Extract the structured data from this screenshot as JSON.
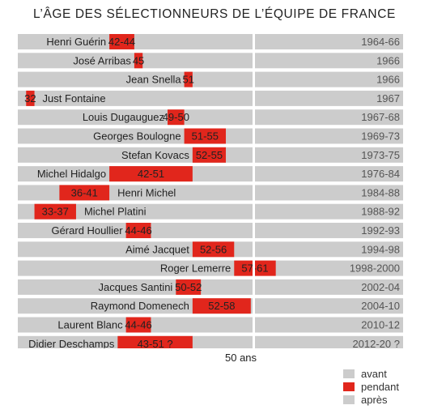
{
  "title": "L’ÂGE DES SÉLECTIONNEURS DE L’ÉQUIPE DE FRANCE",
  "axis_label": "50 ans",
  "legend": [
    {
      "label": "avant",
      "color": "#cccccc"
    },
    {
      "label": "pendant",
      "color": "#e1261c"
    },
    {
      "label": "après",
      "color": "#cccccc"
    }
  ],
  "colors": {
    "bar_background": "#cccccc",
    "tenure": "#e1261c"
  },
  "chart_data": {
    "type": "bar",
    "title": "L’ÂGE DES SÉLECTIONNEURS DE L’ÉQUIPE DE FRANCE",
    "xlabel": "50 ans",
    "x_reference": 50,
    "xlim": [
      31,
      69
    ],
    "series": [
      {
        "name": "Henri Guérin",
        "start": 42,
        "end": 44,
        "age_label": "42-44",
        "period": "1964-66"
      },
      {
        "name": "José Arribas",
        "start": 45,
        "end": 45,
        "age_label": "45",
        "period": "1966"
      },
      {
        "name": "Jean Snella",
        "start": 51,
        "end": 51,
        "age_label": "51",
        "period": "1966"
      },
      {
        "name": "Just Fontaine",
        "start": 32,
        "end": 32,
        "age_label": "32",
        "period": "1967"
      },
      {
        "name": "Louis Dugauguez",
        "start": 49,
        "end": 50,
        "age_label": "49-50",
        "period": "1967-68"
      },
      {
        "name": "Georges Boulogne",
        "start": 51,
        "end": 55,
        "age_label": "51-55",
        "period": "1969-73"
      },
      {
        "name": "Stefan Kovacs",
        "start": 52,
        "end": 55,
        "age_label": "52-55",
        "period": "1973-75"
      },
      {
        "name": "Michel Hidalgo",
        "start": 42,
        "end": 51,
        "age_label": "42-51",
        "period": "1976-84"
      },
      {
        "name": "Henri Michel",
        "start": 36,
        "end": 41,
        "age_label": "36-41",
        "period": "1984-88"
      },
      {
        "name": "Michel Platini",
        "start": 33,
        "end": 37,
        "age_label": "33-37",
        "period": "1988-92"
      },
      {
        "name": "Gérard Houllier",
        "start": 44,
        "end": 46,
        "age_label": "44-46",
        "period": "1992-93"
      },
      {
        "name": "Aimé Jacquet",
        "start": 52,
        "end": 56,
        "age_label": "52-56",
        "period": "1994-98"
      },
      {
        "name": "Roger Lemerre",
        "start": 57,
        "end": 61,
        "age_label": "57-61",
        "period": "1998-2000"
      },
      {
        "name": "Jacques Santini",
        "start": 50,
        "end": 52,
        "age_label": "50-52",
        "period": "2002-04"
      },
      {
        "name": "Raymond Domenech",
        "start": 52,
        "end": 58,
        "age_label": "52-58",
        "period": "2004-10"
      },
      {
        "name": "Laurent Blanc",
        "start": 44,
        "end": 46,
        "age_label": "44-46",
        "period": "2010-12"
      },
      {
        "name": "Didier Deschamps",
        "start": 43,
        "end": 51,
        "age_label": "43-51 ?",
        "period": "2012-20 ?"
      }
    ]
  }
}
